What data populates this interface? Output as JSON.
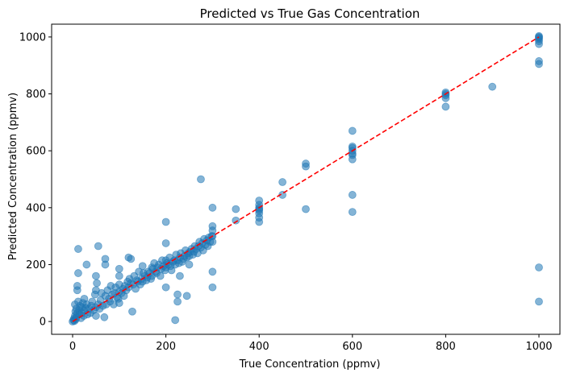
{
  "chart_data": {
    "type": "scatter",
    "title": "Predicted vs True Gas Concentration",
    "xlabel": "True Concentration (ppmv)",
    "ylabel": "Predicted Concentration (ppmv)",
    "xlim": [
      -45,
      1045
    ],
    "ylim": [
      -45,
      1045
    ],
    "xticks": [
      0,
      200,
      400,
      600,
      800,
      1000
    ],
    "yticks": [
      0,
      200,
      400,
      600,
      800,
      1000
    ],
    "grid": false,
    "colors": {
      "points": "#1f77b4",
      "reference_line": "#ff0000"
    },
    "reference_line": {
      "style": "dashed",
      "from": [
        0,
        0
      ],
      "to": [
        1000,
        1000
      ]
    },
    "points": [
      [
        0,
        0
      ],
      [
        2,
        5
      ],
      [
        3,
        10
      ],
      [
        4,
        2
      ],
      [
        5,
        20
      ],
      [
        5,
        60
      ],
      [
        6,
        35
      ],
      [
        7,
        8
      ],
      [
        8,
        45
      ],
      [
        8,
        15
      ],
      [
        10,
        30
      ],
      [
        10,
        110
      ],
      [
        10,
        125
      ],
      [
        12,
        70
      ],
      [
        12,
        170
      ],
      [
        12,
        255
      ],
      [
        14,
        40
      ],
      [
        15,
        25
      ],
      [
        16,
        55
      ],
      [
        18,
        12
      ],
      [
        20,
        30
      ],
      [
        20,
        50
      ],
      [
        22,
        65
      ],
      [
        24,
        20
      ],
      [
        25,
        38
      ],
      [
        25,
        80
      ],
      [
        28,
        48
      ],
      [
        30,
        200
      ],
      [
        30,
        60
      ],
      [
        32,
        25
      ],
      [
        35,
        45
      ],
      [
        38,
        30
      ],
      [
        40,
        55
      ],
      [
        42,
        70
      ],
      [
        45,
        40
      ],
      [
        48,
        95
      ],
      [
        50,
        20
      ],
      [
        50,
        50
      ],
      [
        50,
        110
      ],
      [
        50,
        160
      ],
      [
        52,
        135
      ],
      [
        55,
        265
      ],
      [
        55,
        60
      ],
      [
        58,
        45
      ],
      [
        60,
        75
      ],
      [
        62,
        100
      ],
      [
        65,
        55
      ],
      [
        68,
        15
      ],
      [
        70,
        200
      ],
      [
        70,
        220
      ],
      [
        70,
        90
      ],
      [
        72,
        60
      ],
      [
        75,
        110
      ],
      [
        78,
        80
      ],
      [
        80,
        70
      ],
      [
        82,
        125
      ],
      [
        85,
        95
      ],
      [
        88,
        60
      ],
      [
        90,
        100
      ],
      [
        92,
        120
      ],
      [
        95,
        85
      ],
      [
        98,
        80
      ],
      [
        100,
        65
      ],
      [
        100,
        105
      ],
      [
        100,
        130
      ],
      [
        100,
        160
      ],
      [
        100,
        185
      ],
      [
        105,
        100
      ],
      [
        108,
        115
      ],
      [
        110,
        90
      ],
      [
        112,
        125
      ],
      [
        115,
        110
      ],
      [
        118,
        140
      ],
      [
        120,
        120
      ],
      [
        120,
        225
      ],
      [
        122,
        150
      ],
      [
        125,
        135
      ],
      [
        125,
        220
      ],
      [
        128,
        35
      ],
      [
        130,
        130
      ],
      [
        132,
        160
      ],
      [
        135,
        115
      ],
      [
        138,
        145
      ],
      [
        140,
        140
      ],
      [
        142,
        175
      ],
      [
        145,
        130
      ],
      [
        148,
        150
      ],
      [
        150,
        140
      ],
      [
        150,
        195
      ],
      [
        152,
        170
      ],
      [
        155,
        160
      ],
      [
        158,
        145
      ],
      [
        160,
        155
      ],
      [
        162,
        175
      ],
      [
        165,
        170
      ],
      [
        168,
        150
      ],
      [
        170,
        160
      ],
      [
        170,
        190
      ],
      [
        172,
        185
      ],
      [
        175,
        205
      ],
      [
        178,
        175
      ],
      [
        180,
        170
      ],
      [
        182,
        190
      ],
      [
        185,
        200
      ],
      [
        188,
        160
      ],
      [
        190,
        185
      ],
      [
        192,
        215
      ],
      [
        195,
        195
      ],
      [
        198,
        180
      ],
      [
        200,
        120
      ],
      [
        200,
        190
      ],
      [
        200,
        215
      ],
      [
        200,
        275
      ],
      [
        200,
        350
      ],
      [
        202,
        205
      ],
      [
        205,
        200
      ],
      [
        208,
        225
      ],
      [
        210,
        195
      ],
      [
        212,
        180
      ],
      [
        215,
        210
      ],
      [
        218,
        215
      ],
      [
        220,
        5
      ],
      [
        220,
        200
      ],
      [
        222,
        235
      ],
      [
        225,
        70
      ],
      [
        225,
        95
      ],
      [
        225,
        215
      ],
      [
        228,
        205
      ],
      [
        230,
        160
      ],
      [
        230,
        225
      ],
      [
        232,
        240
      ],
      [
        235,
        210
      ],
      [
        238,
        220
      ],
      [
        240,
        230
      ],
      [
        242,
        250
      ],
      [
        245,
        90
      ],
      [
        245,
        225
      ],
      [
        248,
        240
      ],
      [
        250,
        200
      ],
      [
        250,
        230
      ],
      [
        252,
        245
      ],
      [
        255,
        255
      ],
      [
        258,
        235
      ],
      [
        260,
        245
      ],
      [
        262,
        265
      ],
      [
        265,
        255
      ],
      [
        268,
        240
      ],
      [
        270,
        265
      ],
      [
        272,
        280
      ],
      [
        275,
        260
      ],
      [
        275,
        500
      ],
      [
        278,
        275
      ],
      [
        280,
        250
      ],
      [
        282,
        290
      ],
      [
        285,
        270
      ],
      [
        288,
        285
      ],
      [
        290,
        265
      ],
      [
        292,
        295
      ],
      [
        295,
        280
      ],
      [
        298,
        300
      ],
      [
        300,
        120
      ],
      [
        300,
        175
      ],
      [
        300,
        280
      ],
      [
        300,
        300
      ],
      [
        300,
        320
      ],
      [
        300,
        335
      ],
      [
        300,
        400
      ],
      [
        350,
        355
      ],
      [
        350,
        395
      ],
      [
        400,
        350
      ],
      [
        400,
        365
      ],
      [
        400,
        380
      ],
      [
        400,
        390
      ],
      [
        400,
        395
      ],
      [
        400,
        400
      ],
      [
        400,
        410
      ],
      [
        400,
        425
      ],
      [
        450,
        445
      ],
      [
        450,
        490
      ],
      [
        500,
        395
      ],
      [
        500,
        545
      ],
      [
        500,
        555
      ],
      [
        600,
        385
      ],
      [
        600,
        445
      ],
      [
        600,
        570
      ],
      [
        600,
        585
      ],
      [
        600,
        590
      ],
      [
        600,
        600
      ],
      [
        600,
        610
      ],
      [
        600,
        615
      ],
      [
        600,
        670
      ],
      [
        800,
        755
      ],
      [
        800,
        785
      ],
      [
        800,
        795
      ],
      [
        800,
        800
      ],
      [
        800,
        805
      ],
      [
        900,
        825
      ],
      [
        1000,
        70
      ],
      [
        1000,
        190
      ],
      [
        1000,
        905
      ],
      [
        1000,
        915
      ],
      [
        1000,
        975
      ],
      [
        1000,
        985
      ],
      [
        1000,
        992
      ],
      [
        1000,
        997
      ],
      [
        1000,
        1000
      ],
      [
        1000,
        1003
      ]
    ]
  }
}
